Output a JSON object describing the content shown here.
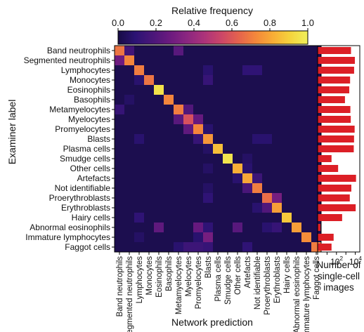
{
  "chart_data": [
    {
      "type": "heatmap",
      "title": "Relative frequency",
      "xlabel": "Network prediction",
      "ylabel": "Examiner label",
      "colorbar": {
        "label": "Relative frequency",
        "range": [
          0.0,
          1.0
        ],
        "ticks": [
          "0.0",
          "0.2",
          "0.4",
          "0.6",
          "0.8",
          "1.0"
        ],
        "colormap": [
          "#0d0887",
          "#2c1477",
          "#5b2a86",
          "#8a3b8c",
          "#b3477f",
          "#d8576b",
          "#ef7350",
          "#f79a3b",
          "#f7c52f",
          "#f0f921"
        ],
        "cmap_stops": [
          "#170c45",
          "#2c1374",
          "#4a1679",
          "#6b1a7f",
          "#8b2680",
          "#ac337a",
          "#cc4668",
          "#e5634d",
          "#f4883a",
          "#f8ae36",
          "#f5d43d",
          "#f0f05a"
        ]
      },
      "categories": [
        "Band neutrophils",
        "Segmented neutrophils",
        "Lymphocytes",
        "Monocytes",
        "Eosinophils",
        "Basophils",
        "Metamyelocytes",
        "Myelocytes",
        "Promyelocytes",
        "Blasts",
        "Plasma cells",
        "Smudge cells",
        "Other cells",
        "Artefacts",
        "Not identifiable",
        "Proerythroblasts",
        "Erythroblasts",
        "Hairy cells",
        "Abnormal eosinophils",
        "Immature lymphocytes",
        "Faggot cells"
      ],
      "diagonal": [
        0.68,
        0.72,
        0.7,
        0.68,
        0.95,
        0.72,
        0.7,
        0.58,
        0.72,
        0.76,
        0.86,
        0.96,
        0.82,
        0.8,
        0.7,
        0.66,
        0.78,
        0.88,
        0.78,
        0.74,
        0.7
      ],
      "off_diagonal": [
        {
          "row": 0,
          "col": 1,
          "value": 0.16
        },
        {
          "row": 0,
          "col": 6,
          "value": 0.22
        },
        {
          "row": 1,
          "col": 0,
          "value": 0.28
        },
        {
          "row": 2,
          "col": 9,
          "value": 0.08
        },
        {
          "row": 2,
          "col": 13,
          "value": 0.1
        },
        {
          "row": 2,
          "col": 14,
          "value": 0.1
        },
        {
          "row": 3,
          "col": 2,
          "value": 0.08
        },
        {
          "row": 3,
          "col": 9,
          "value": 0.12
        },
        {
          "row": 5,
          "col": 1,
          "value": 0.06
        },
        {
          "row": 6,
          "col": 0,
          "value": 0.12
        },
        {
          "row": 6,
          "col": 7,
          "value": 0.2
        },
        {
          "row": 7,
          "col": 6,
          "value": 0.22
        },
        {
          "row": 7,
          "col": 8,
          "value": 0.26
        },
        {
          "row": 8,
          "col": 7,
          "value": 0.24
        },
        {
          "row": 8,
          "col": 9,
          "value": 0.08
        },
        {
          "row": 9,
          "col": 2,
          "value": 0.08
        },
        {
          "row": 9,
          "col": 8,
          "value": 0.12
        },
        {
          "row": 9,
          "col": 14,
          "value": 0.08
        },
        {
          "row": 9,
          "col": 15,
          "value": 0.08
        },
        {
          "row": 10,
          "col": 9,
          "value": 0.06
        },
        {
          "row": 11,
          "col": 13,
          "value": 0.06
        },
        {
          "row": 12,
          "col": 9,
          "value": 0.06
        },
        {
          "row": 12,
          "col": 13,
          "value": 0.08
        },
        {
          "row": 13,
          "col": 12,
          "value": 0.08
        },
        {
          "row": 13,
          "col": 14,
          "value": 0.14
        },
        {
          "row": 14,
          "col": 13,
          "value": 0.18
        },
        {
          "row": 14,
          "col": 9,
          "value": 0.06
        },
        {
          "row": 15,
          "col": 9,
          "value": 0.1
        },
        {
          "row": 15,
          "col": 16,
          "value": 0.3
        },
        {
          "row": 16,
          "col": 15,
          "value": 0.2
        },
        {
          "row": 16,
          "col": 14,
          "value": 0.08
        },
        {
          "row": 17,
          "col": 2,
          "value": 0.1
        },
        {
          "row": 18,
          "col": 4,
          "value": 0.24
        },
        {
          "row": 18,
          "col": 8,
          "value": 0.26
        },
        {
          "row": 18,
          "col": 12,
          "value": 0.22
        },
        {
          "row": 18,
          "col": 9,
          "value": 0.1
        },
        {
          "row": 18,
          "col": 16,
          "value": 0.12
        },
        {
          "row": 18,
          "col": 15,
          "value": 0.08
        },
        {
          "row": 19,
          "col": 9,
          "value": 0.3
        },
        {
          "row": 19,
          "col": 8,
          "value": 0.08
        },
        {
          "row": 19,
          "col": 2,
          "value": 0.06
        },
        {
          "row": 20,
          "col": 7,
          "value": 0.14
        },
        {
          "row": 20,
          "col": 8,
          "value": 0.14
        },
        {
          "row": 20,
          "col": 9,
          "value": 0.12
        },
        {
          "row": 20,
          "col": 13,
          "value": 0.1
        },
        {
          "row": 20,
          "col": 6,
          "value": 0.08
        }
      ],
      "background_value": 0.02
    },
    {
      "type": "bar",
      "orientation": "horizontal",
      "xlabel": "Number of single-cell images",
      "xscale": "log",
      "x_ticks": [
        "10",
        "2",
        "10",
        "4"
      ],
      "xlim": [
        1,
        30000
      ],
      "bar_color": "#dc1f26",
      "categories": [
        "Band neutrophils",
        "Segmented neutrophils",
        "Lymphocytes",
        "Monocytes",
        "Eosinophils",
        "Basophils",
        "Metamyelocytes",
        "Myelocytes",
        "Promyelocytes",
        "Blasts",
        "Plasma cells",
        "Smudge cells",
        "Other cells",
        "Artefacts",
        "Not identifiable",
        "Proerythroblasts",
        "Erythroblasts",
        "Hairy cells",
        "Abnormal eosinophils",
        "Immature lymphocytes",
        "Faggot cells"
      ],
      "values": [
        3500,
        9000,
        7500,
        2800,
        2300,
        800,
        3000,
        3300,
        8500,
        7400,
        6900,
        30,
        150,
        12000,
        3800,
        2600,
        11000,
        400,
        2,
        50,
        30
      ]
    }
  ]
}
